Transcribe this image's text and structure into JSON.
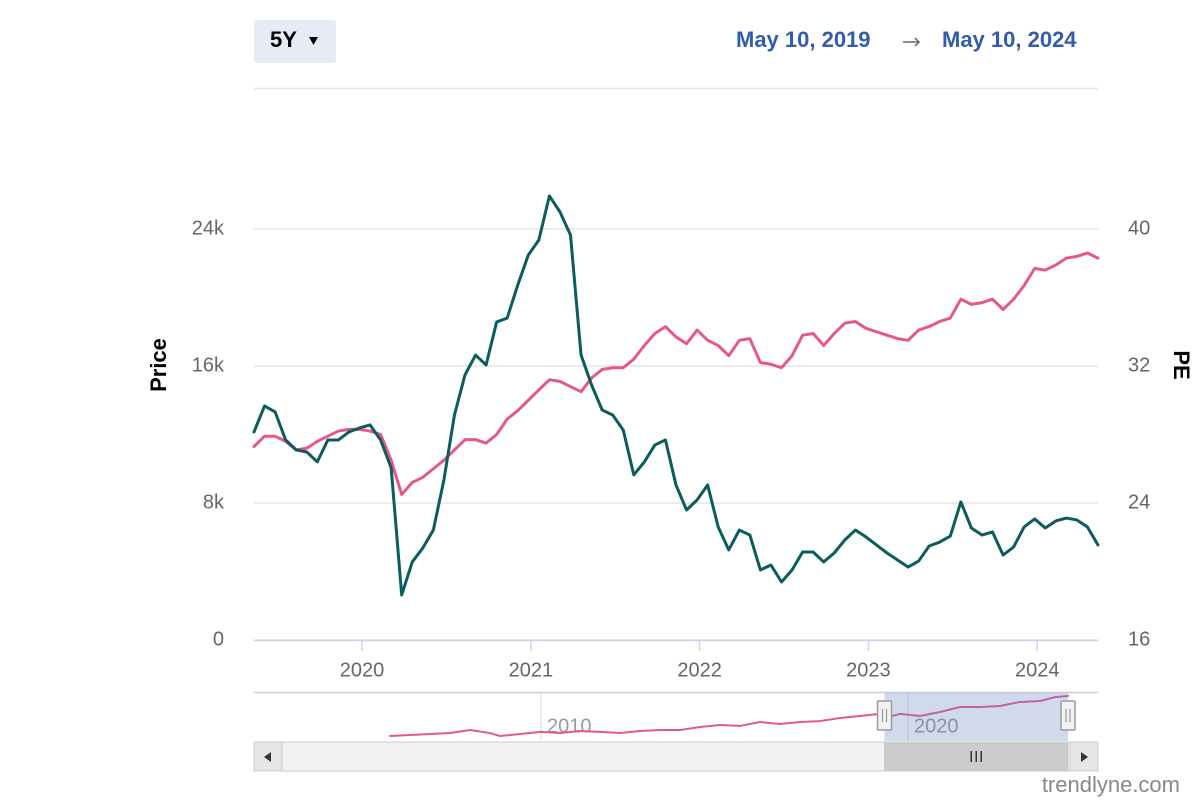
{
  "ui": {
    "range_button": "5Y",
    "date_from": "May 10, 2019",
    "date_to": "May 10, 2024",
    "watermark": "trendlyne.com"
  },
  "chart_data": [
    {
      "type": "line",
      "ylabel": "Price",
      "y2label": "PE",
      "x": [
        2019.36,
        2019.4225,
        2019.485,
        2019.5475,
        2019.61,
        2019.6725,
        2019.735,
        2019.7975,
        2019.86,
        2019.9225,
        2019.985,
        2020.0475,
        2020.11,
        2020.1725,
        2020.235,
        2020.2975,
        2020.36,
        2020.4225,
        2020.485,
        2020.5475,
        2020.61,
        2020.6725,
        2020.735,
        2020.7975,
        2020.86,
        2020.9225,
        2020.985,
        2021.0475,
        2021.11,
        2021.1725,
        2021.235,
        2021.2975,
        2021.36,
        2021.4225,
        2021.485,
        2021.5475,
        2021.61,
        2021.6725,
        2021.735,
        2021.7975,
        2021.86,
        2021.9225,
        2021.985,
        2022.0475,
        2022.11,
        2022.1725,
        2022.235,
        2022.2975,
        2022.36,
        2022.4225,
        2022.485,
        2022.5475,
        2022.61,
        2022.6725,
        2022.735,
        2022.7975,
        2022.86,
        2022.9225,
        2022.985,
        2023.0475,
        2023.11,
        2023.1725,
        2023.235,
        2023.2975,
        2023.36,
        2023.4225,
        2023.485,
        2023.5475,
        2023.61,
        2023.6725,
        2023.735,
        2023.7975,
        2023.86,
        2023.9225,
        2023.985,
        2024.0475,
        2024.11,
        2024.1725,
        2024.235,
        2024.2975,
        2024.36
      ],
      "series": [
        {
          "color": "#e5578f",
          "axis": "y2",
          "values": [
            27.3,
            27.9,
            27.9,
            27.6,
            27.1,
            27.2,
            27.6,
            27.9,
            28.2,
            28.3,
            28.3,
            28.2,
            28.0,
            26.5,
            24.5,
            25.2,
            25.5,
            26.0,
            26.5,
            27.1,
            27.7,
            27.7,
            27.5,
            28.0,
            28.9,
            29.4,
            30.0,
            30.6,
            31.2,
            31.1,
            30.8,
            30.5,
            31.3,
            31.8,
            31.9,
            31.9,
            32.4,
            33.2,
            33.9,
            34.3,
            33.7,
            33.3,
            34.1,
            33.5,
            33.2,
            32.6,
            33.5,
            33.6,
            32.2,
            32.1,
            31.9,
            32.6,
            33.8,
            33.9,
            33.2,
            33.9,
            34.5,
            34.6,
            34.2,
            34.0,
            33.8,
            33.6,
            33.5,
            34.1,
            34.3,
            34.6,
            34.8,
            35.9,
            35.6,
            35.7,
            35.9,
            35.3,
            35.9,
            36.7,
            37.7,
            37.6,
            37.9,
            38.3,
            38.4,
            38.6,
            38.3
          ]
        },
        {
          "color": "#0b5c5c",
          "values": [
            12150,
            13670,
            13320,
            11680,
            11100,
            10980,
            10400,
            11680,
            11680,
            12150,
            12380,
            12560,
            11680,
            10050,
            2630,
            4560,
            5370,
            6420,
            9340,
            13140,
            15480,
            16640,
            16060,
            18570,
            18800,
            20730,
            22480,
            23360,
            25930,
            25000,
            23650,
            16640,
            14890,
            13430,
            13140,
            12260,
            9640,
            10400,
            11390,
            11680,
            9050,
            7590,
            8180,
            9050,
            6600,
            5260,
            6420,
            6130,
            4090,
            4380,
            3390,
            4090,
            5140,
            5140,
            4560,
            5080,
            5840,
            6420,
            6020,
            5550,
            5080,
            4670,
            4260,
            4610,
            5490,
            5720,
            6070,
            8060,
            6540,
            6130,
            6310,
            4960,
            5430,
            6600,
            7070,
            6540,
            6950,
            7120,
            7010,
            6600,
            5550
          ]
        }
      ],
      "xlim": [
        2019.36,
        2024.36
      ],
      "xticks": [
        2020,
        2021,
        2022,
        2023,
        2024
      ],
      "ylim": [
        0,
        32000
      ],
      "yticks": [
        0,
        {
          "value": 8000,
          "label": "8k"
        },
        {
          "value": 16000,
          "label": "16k"
        },
        {
          "value": 24000,
          "label": "24k"
        }
      ],
      "y2lim": [
        16,
        48
      ],
      "y2ticks": [
        16,
        24,
        32,
        40
      ],
      "grid": true
    },
    {
      "type": "line",
      "x": [
        2005.89,
        2006.43,
        2006.98,
        2007.52,
        2008.07,
        2008.61,
        2008.88,
        2009.43,
        2010.0,
        2010.52,
        2011.06,
        2011.61,
        2012.15,
        2012.7,
        2013.24,
        2013.79,
        2014.33,
        2014.88,
        2015.42,
        2015.97,
        2016.51,
        2017.06,
        2017.6,
        2018.15,
        2018.69,
        2019.24,
        2019.37,
        2019.78,
        2020.33,
        2020.87,
        2021.42,
        2021.96,
        2022.51,
        2023.05,
        2023.6,
        2024.01,
        2024.36
      ],
      "values": [
        13.1,
        13.7,
        14.3,
        14.9,
        16.8,
        14.9,
        13.1,
        14.3,
        15.6,
        14.9,
        16.2,
        15.6,
        14.9,
        16.2,
        16.8,
        16.8,
        18.6,
        19.9,
        19.3,
        21.7,
        20.5,
        21.7,
        22.3,
        24.2,
        25.4,
        26.7,
        24.2,
        26.7,
        25.4,
        27.9,
        31.0,
        31.0,
        31.6,
        34.1,
        34.7,
        37.1,
        37.8
      ],
      "color": "#e5578f",
      "xlim": [
        2002.18,
        2024.36
      ],
      "xticks": [
        2010,
        2020
      ],
      "ylim": [
        10,
        39
      ]
    }
  ]
}
